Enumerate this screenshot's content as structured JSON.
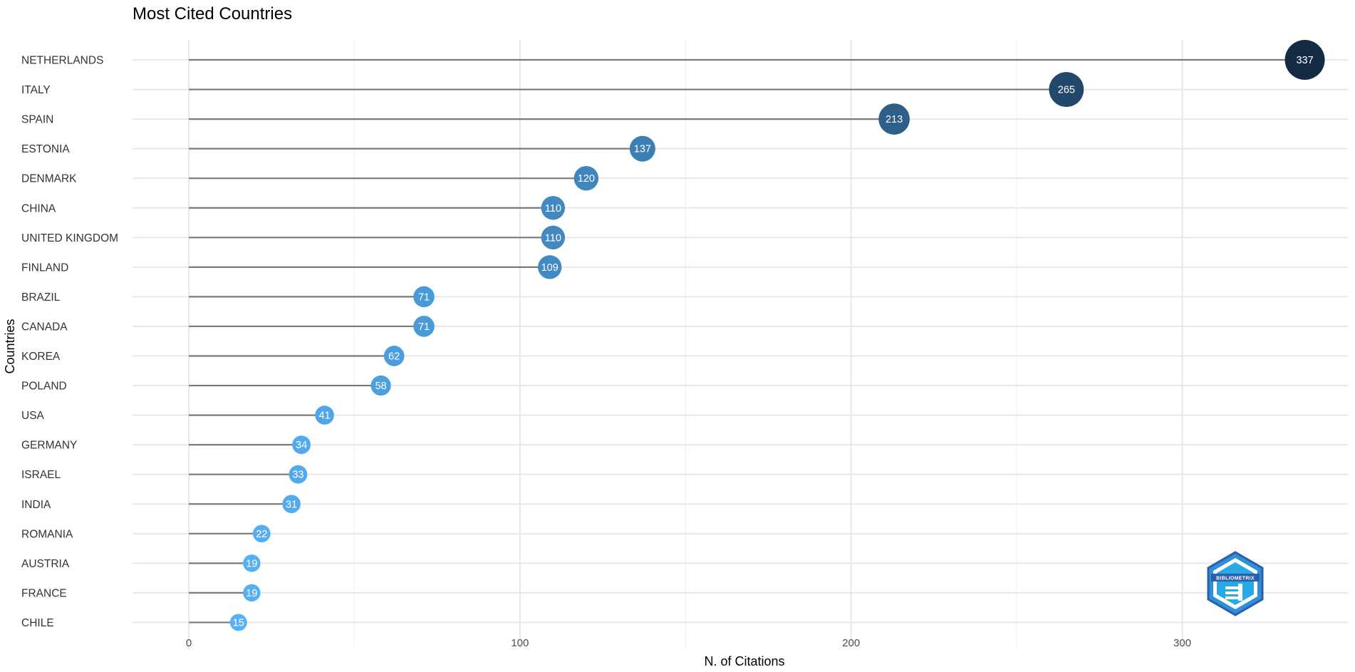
{
  "chart_data": {
    "type": "lollipop",
    "title": "Most Cited Countries",
    "xlabel": "N. of Citations",
    "ylabel": "Countries",
    "xlim": [
      -17,
      350
    ],
    "x_ticks": [
      0,
      100,
      200,
      300
    ],
    "x_tick_labels": [
      "0",
      "100",
      "200",
      "300"
    ],
    "grid": true,
    "categories": [
      "NETHERLANDS",
      "ITALY",
      "SPAIN",
      "ESTONIA",
      "DENMARK",
      "CHINA",
      "UNITED KINGDOM",
      "FINLAND",
      "BRAZIL",
      "CANADA",
      "KOREA",
      "POLAND",
      "USA",
      "GERMANY",
      "ISRAEL",
      "INDIA",
      "ROMANIA",
      "AUSTRIA",
      "FRANCE",
      "CHILE"
    ],
    "values": [
      337,
      265,
      213,
      137,
      120,
      110,
      110,
      109,
      71,
      71,
      62,
      58,
      41,
      34,
      33,
      31,
      22,
      19,
      19,
      15
    ],
    "color_scale": {
      "low": "#56b1f7",
      "high": "#132b43"
    }
  },
  "logo": {
    "text": "BIBLIOMETRIX"
  }
}
